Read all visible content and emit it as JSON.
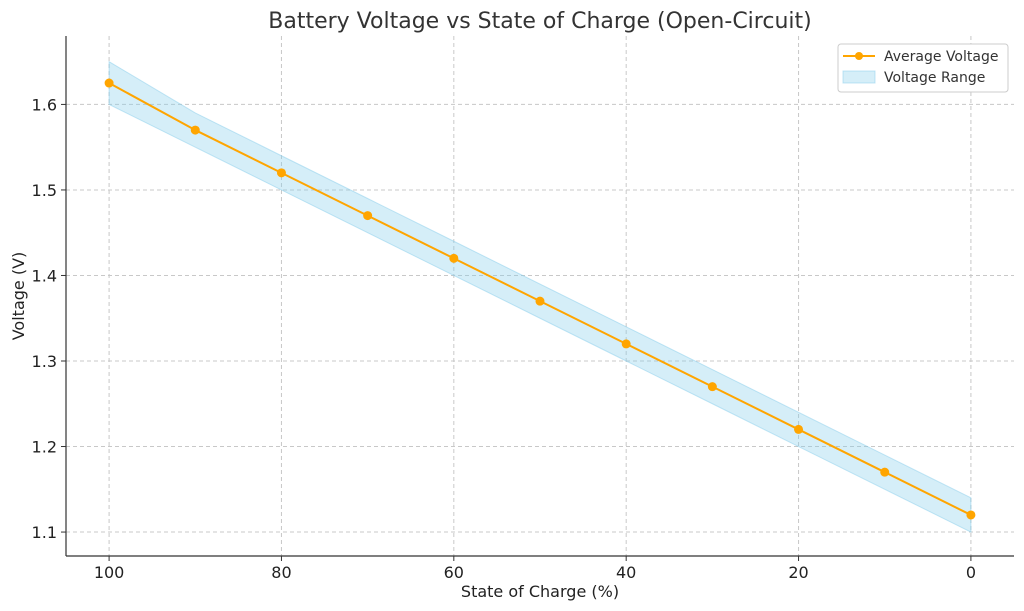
{
  "chart_data": {
    "type": "line",
    "title": "Battery Voltage vs State of Charge (Open-Circuit)",
    "xlabel": "State of Charge (%)",
    "ylabel": "Voltage (V)",
    "x": [
      100,
      90,
      80,
      70,
      60,
      50,
      40,
      30,
      20,
      10,
      0
    ],
    "xlim": [
      105,
      -5
    ],
    "x_reversed": true,
    "xticks": [
      100,
      80,
      60,
      40,
      20,
      0
    ],
    "ylim": [
      1.072,
      1.68
    ],
    "yticks": [
      1.1,
      1.2,
      1.3,
      1.4,
      1.5,
      1.6
    ],
    "grid": true,
    "legend_position": "top-right",
    "series": [
      {
        "name": "Average Voltage",
        "type": "line",
        "marker": "circle",
        "color": "#FFA500",
        "values": [
          1.625,
          1.57,
          1.52,
          1.47,
          1.42,
          1.37,
          1.32,
          1.27,
          1.22,
          1.17,
          1.12
        ]
      },
      {
        "name": "Voltage Range",
        "type": "band",
        "color": "#87CEEB",
        "lower": [
          1.6,
          1.55,
          1.5,
          1.45,
          1.4,
          1.35,
          1.3,
          1.25,
          1.2,
          1.15,
          1.1
        ],
        "upper": [
          1.65,
          1.59,
          1.54,
          1.49,
          1.44,
          1.39,
          1.34,
          1.29,
          1.24,
          1.19,
          1.14
        ]
      }
    ]
  }
}
